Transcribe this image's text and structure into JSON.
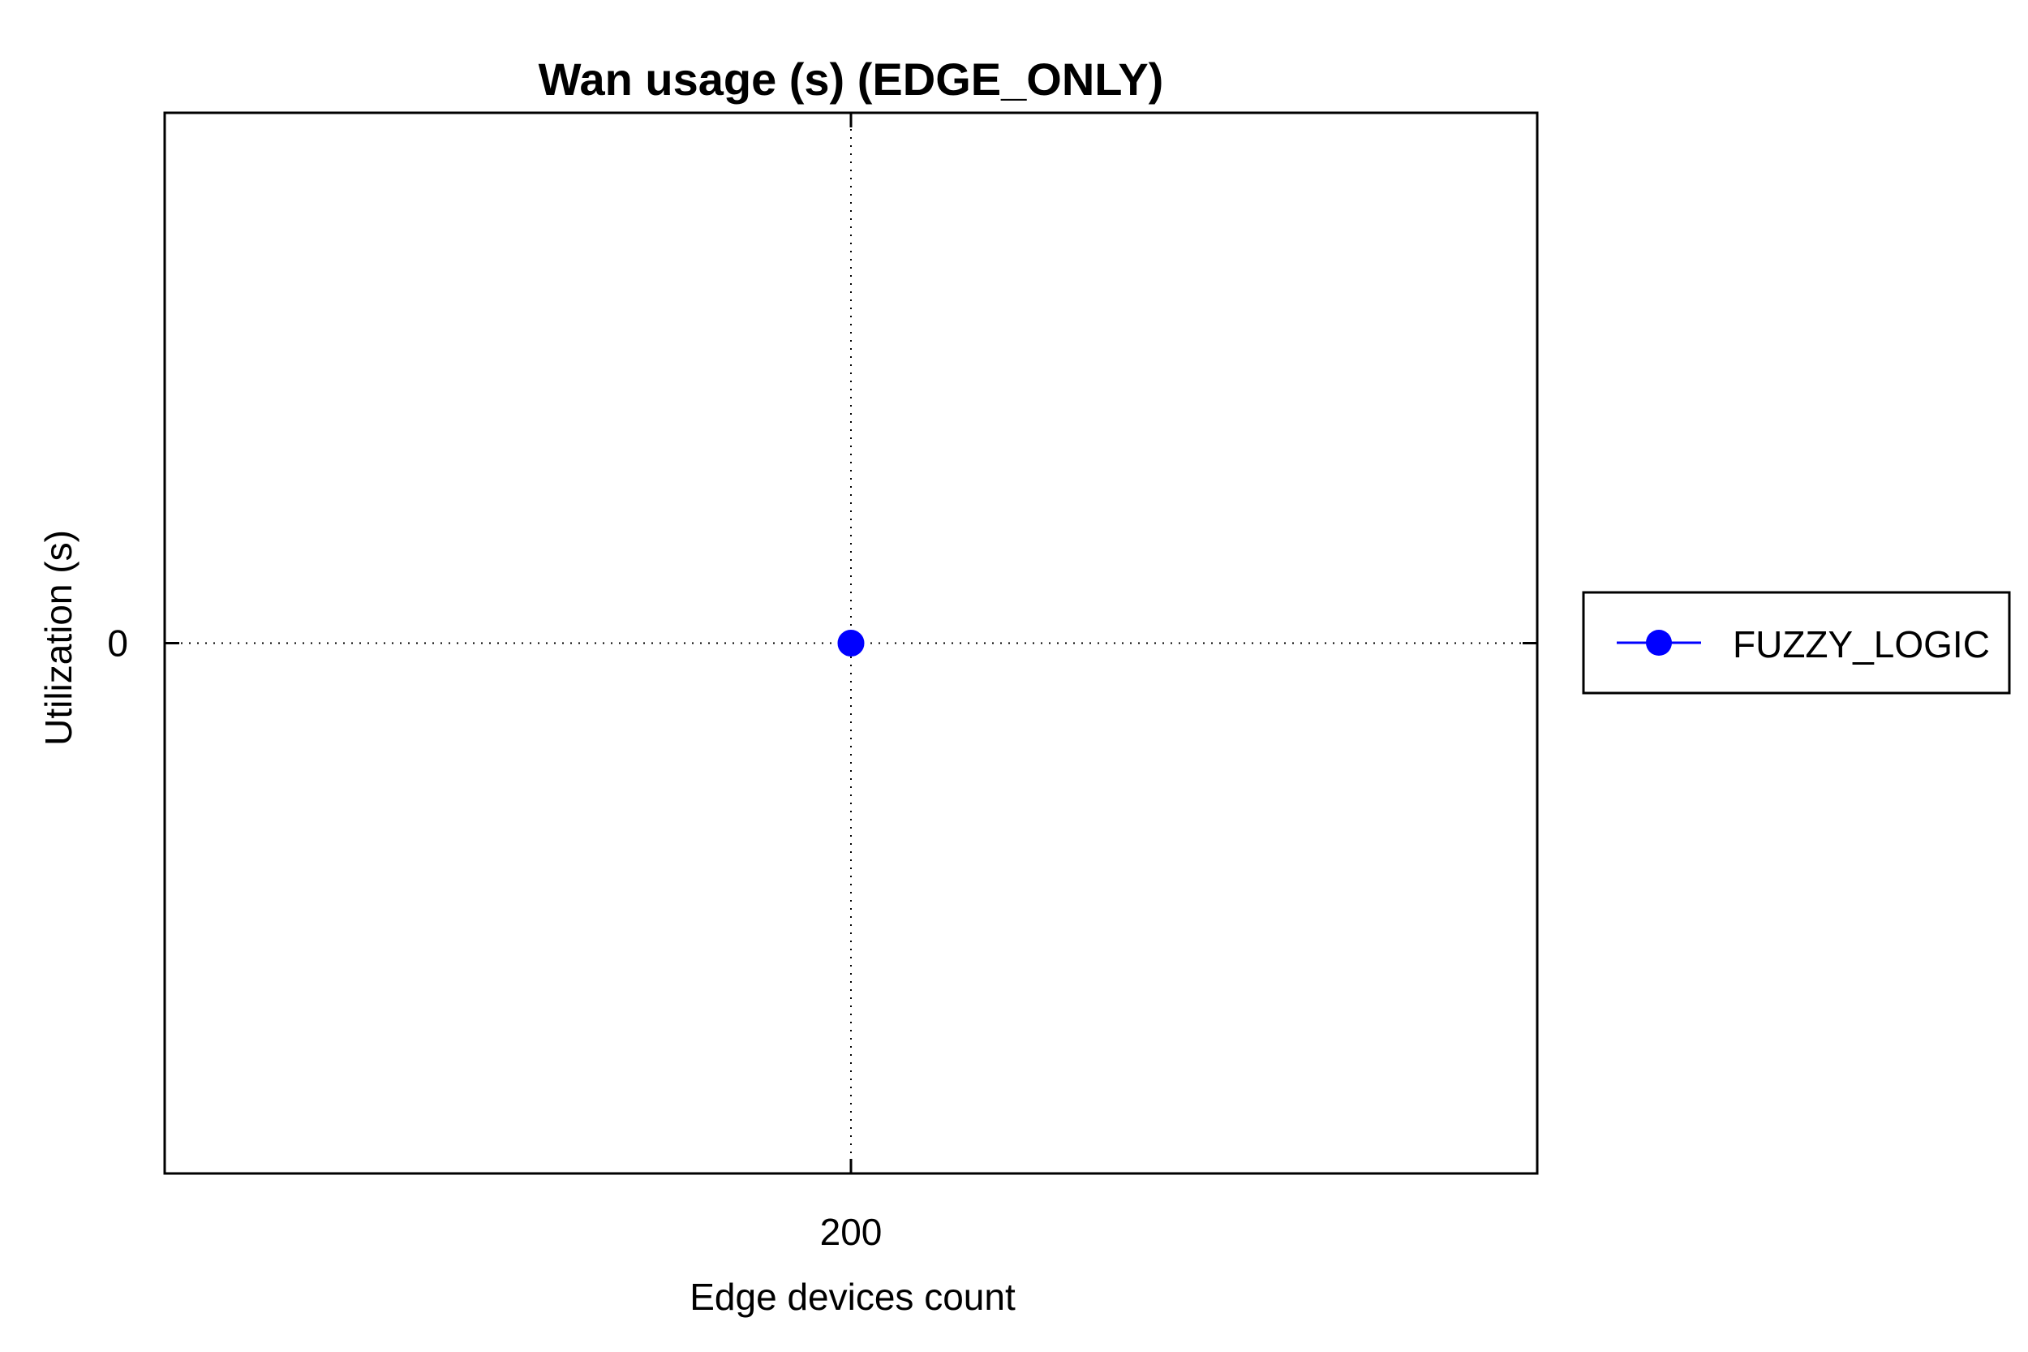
{
  "chart_data": {
    "type": "line",
    "title": "Wan usage (s) (EDGE_ONLY)",
    "xlabel": "Edge devices count",
    "ylabel": "Utilization (s)",
    "x": [
      200
    ],
    "x_ticks": [
      "200"
    ],
    "y_ticks": [
      "0"
    ],
    "xlim": [
      100,
      300
    ],
    "ylim": [
      -1,
      1
    ],
    "grid": true,
    "grid_style": "dotted",
    "legend_position": "outside-right",
    "series": [
      {
        "name": "FUZZY_LOGIC",
        "x": [
          200
        ],
        "y": [
          0
        ],
        "color": "#0000ff",
        "marker": "circle"
      }
    ]
  }
}
